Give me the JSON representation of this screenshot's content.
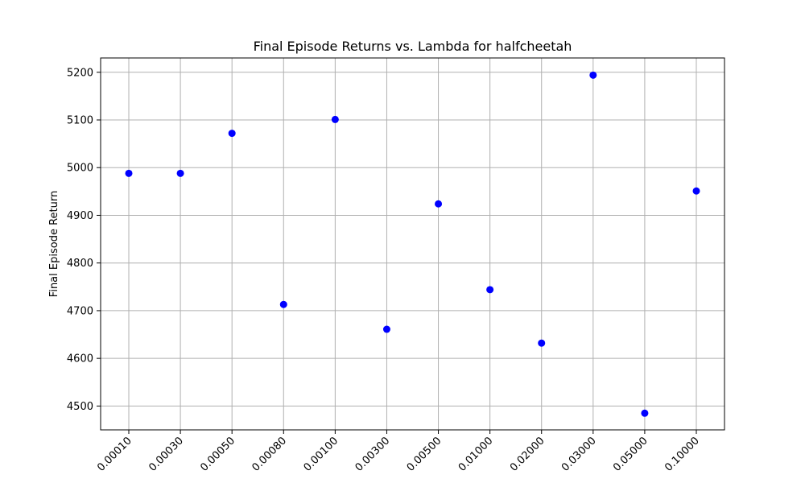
{
  "chart_data": {
    "type": "scatter",
    "title": "Final Episode Returns vs. Lambda for halfcheetah",
    "xlabel": "",
    "ylabel": "Final Episode Return",
    "x_scale": "categorical",
    "categories": [
      "0.00010",
      "0.00030",
      "0.00050",
      "0.00080",
      "0.00100",
      "0.00300",
      "0.00500",
      "0.01000",
      "0.02000",
      "0.03000",
      "0.05000",
      "0.10000"
    ],
    "values": [
      4988,
      4988,
      5072,
      4713,
      5101,
      4661,
      4924,
      4744,
      4632,
      5194,
      4485,
      4951
    ],
    "yticks": [
      4500,
      4600,
      4700,
      4800,
      4900,
      5000,
      5100,
      5200
    ],
    "ylim": [
      4450,
      5230
    ],
    "grid": true,
    "x_tick_rotation_deg": 45,
    "marker_color": "#0000ff"
  }
}
